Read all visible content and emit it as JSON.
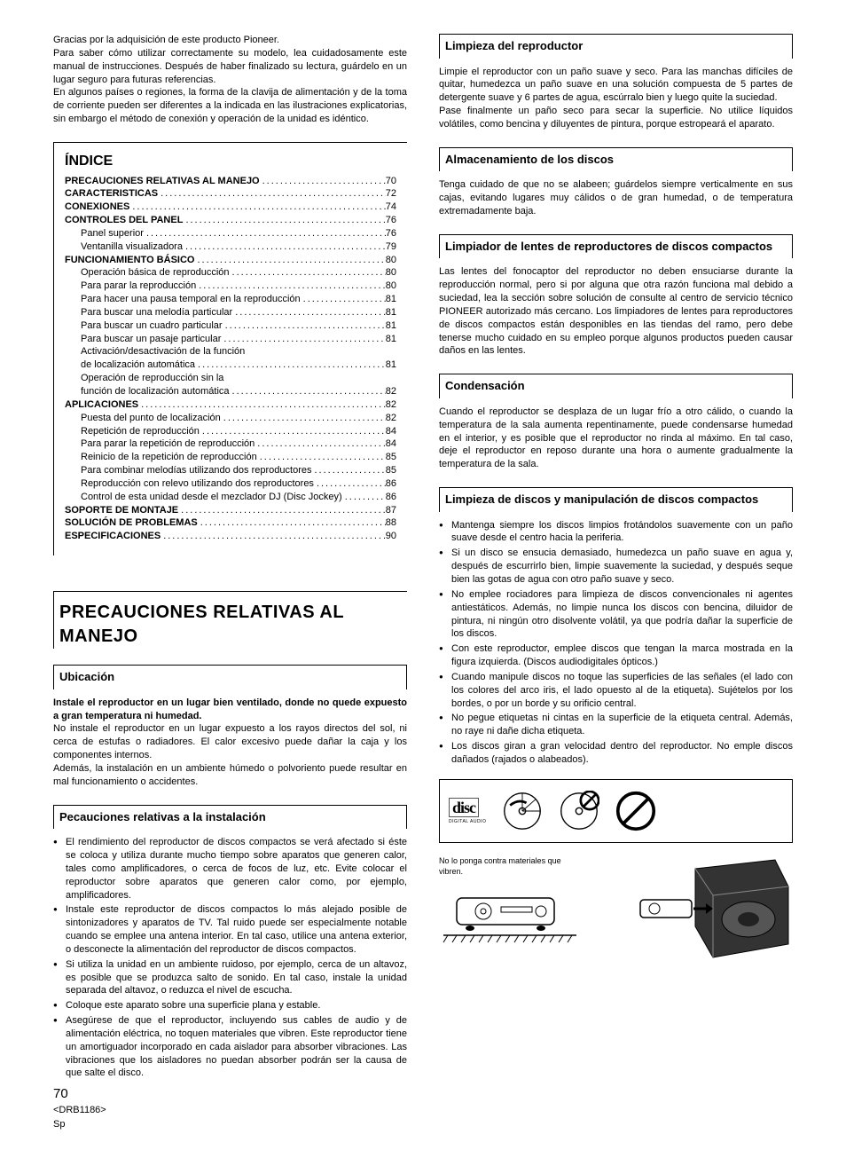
{
  "intro": {
    "p1": "Gracias por la adquisición de este producto Pioneer.",
    "p2": "Para saber cómo utilizar correctamente su modelo, lea cuidadosamente este manual de instrucciones. Después de haber finalizado su lectura, guárdelo en un lugar seguro para futuras referencias.",
    "p3": "En algunos países o regiones, la forma de la clavija de alimentación y de la toma de corriente pueden ser diferentes a la indicada en las ilustraciones explicatorias, sin embargo el método de conexión y operación de la unidad es idéntico."
  },
  "indice": {
    "title": "ÍNDICE",
    "rows": [
      {
        "label": "PRECAUCIONES RELATIVAS AL MANEJO",
        "page": "70",
        "bold": true
      },
      {
        "label": "CARACTERISTICAS",
        "page": "72",
        "bold": true
      },
      {
        "label": "CONEXIONES",
        "page": "74",
        "bold": true
      },
      {
        "label": "CONTROLES DEL PANEL",
        "page": "76",
        "bold": true
      },
      {
        "label": "Panel superior",
        "page": "76",
        "sub": true
      },
      {
        "label": "Ventanilla visualizadora",
        "page": "79",
        "sub": true
      },
      {
        "label": "FUNCIONAMIENTO BÁSICO",
        "page": "80",
        "bold": true
      },
      {
        "label": "Operación básica de reproducción",
        "page": "80",
        "sub": true
      },
      {
        "label": "Para parar la reproducción",
        "page": "80",
        "sub": true
      },
      {
        "label": "Para hacer una pausa temporal en la reproducción",
        "page": "81",
        "sub": true
      },
      {
        "label": "Para buscar una melodía particular",
        "page": "81",
        "sub": true
      },
      {
        "label": "Para buscar un cuadro particular",
        "page": "81",
        "sub": true
      },
      {
        "label": "Para buscar un pasaje particular",
        "page": "81",
        "sub": true
      },
      {
        "label": "Activación/desactivación de la función",
        "page": "",
        "sub": true,
        "nopage": true
      },
      {
        "label": "de localización automática",
        "page": "81",
        "sub": true
      },
      {
        "label": "Operación de reproducción sin la",
        "page": "",
        "sub": true,
        "nopage": true
      },
      {
        "label": "función de localización automática",
        "page": "82",
        "sub": true
      },
      {
        "label": "APLICACIONES",
        "page": "82",
        "bold": true
      },
      {
        "label": "Puesta del punto de localización",
        "page": "82",
        "sub": true
      },
      {
        "label": "Repetición de reproducción",
        "page": "84",
        "sub": true
      },
      {
        "label": "Para parar la repetición de reproducción",
        "page": "84",
        "sub": true
      },
      {
        "label": "Reinicio de la repetición de reproducción",
        "page": "85",
        "sub": true
      },
      {
        "label": "Para combinar melodías utilizando dos reproductores",
        "page": "85",
        "sub": true
      },
      {
        "label": "Reproducción con relevo utilizando dos reproductores",
        "page": "86",
        "sub": true
      },
      {
        "label": "Control de esta unidad desde el mezclador DJ (Disc Jockey)",
        "page": "86",
        "sub": true
      },
      {
        "label": "SOPORTE DE MONTAJE",
        "page": "87",
        "bold": true
      },
      {
        "label": "SOLUCIÓN DE PROBLEMAS",
        "page": "88",
        "bold": true
      },
      {
        "label": "ESPECIFICACIONES",
        "page": "90",
        "bold": true
      }
    ]
  },
  "h1": "PRECAUCIONES RELATIVAS AL MANEJO",
  "ubicacion": {
    "head": "Ubicación",
    "lead": "Instale el reproductor en un lugar bien ventilado, donde no quede expuesto a gran temperatura ni humedad.",
    "p1": "No instale el reproductor en un lugar expuesto a los rayos directos del sol, ni cerca de estufas o radiadores. El calor excesivo puede dañar la caja y los componentes internos.",
    "p2": "Además, la instalación en un ambiente húmedo o polvoriento puede resultar en mal funcionamiento o accidentes."
  },
  "instalacion": {
    "head": "Pecauciones relativas a la instalación",
    "items": [
      "El rendimiento del reproductor de discos compactos se verá afectado si éste se coloca y utiliza durante mucho tiempo sobre aparatos que generen calor, tales como amplificadores, o cerca de focos de luz, etc. Evite colocar el reproductor sobre aparatos que generen calor como, por ejemplo, amplificadores.",
      "Instale este reproductor de discos compactos lo más alejado posible de sintonizadores y aparatos de TV. Tal ruido puede ser especialmente notable cuando se emplee una antena interior. En tal caso, utilice una antena exterior, o desconecte la alimentación del reproductor de discos compactos.",
      "Si utiliza la unidad en un ambiente ruidoso, por ejemplo, cerca de un altavoz, es posible que se produzca salto de sonido. En tal caso, instale la unidad separada del altavoz, o reduzca el nivel de escucha.",
      "Coloque este aparato sobre una superficie plana y estable.",
      "Asegúrese de que el reproductor, incluyendo sus cables de audio y de alimentación eléctrica, no toquen materiales que vibren. Este reproductor tiene un amortiguador incorporado en cada aislador para absorber vibraciones. Las vibraciones que los aisladores no puedan absorber podrán ser la causa de que salte el disco."
    ]
  },
  "footer": {
    "page": "70",
    "ref": "<DRB1186>",
    "lang": "Sp"
  },
  "limpieza": {
    "head": "Limpieza del reproductor",
    "p1": "Limpie el reproductor con un paño suave y seco. Para las manchas difíciles de quitar, humedezca un paño suave en una solución compuesta de 5 partes de detergente suave y 6 partes de agua, escúrralo bien y luego quite la suciedad.",
    "p2": "Pase finalmente un paño seco para secar la superficie. No utilice líquidos volátiles, como bencina y diluyentes de pintura, porque estropeará el aparato."
  },
  "almacen": {
    "head": "Almacenamiento de los discos",
    "p": "Tenga cuidado de que no se alabeen; guárdelos siempre verticalmente en sus cajas, evitando lugares muy cálidos o de gran humedad, o de temperatura extremadamente baja."
  },
  "lentes": {
    "head": "Limpiador de lentes de reproductores de discos compactos",
    "p": "Las lentes del fonocaptor del reproductor no deben ensuciarse durante la reproducción normal, pero si por alguna que otra razón funciona mal debido a suciedad, lea la sección sobre solución de consulte al centro de servicio técnico PIONEER autorizado más cercano. Los limpiadores de lentes para reproductores de discos compactos están desponibles en las tiendas del ramo, pero debe tenerse mucho cuidado en su empleo porque algunos productos pueden causar daños en las lentes."
  },
  "condensacion": {
    "head": "Condensación",
    "p": "Cuando el reproductor se desplaza de un lugar frío a otro cálido, o cuando la temperatura de la sala aumenta repentinamente, puede condensarse humedad en el interior, y es posible que el reproductor no rinda al máximo. En tal caso, deje el reproductor en reposo durante una hora o aumente gradualmente la temperatura de la sala."
  },
  "manip": {
    "head": "Limpieza de discos y manipulación de discos compactos",
    "items": [
      "Mantenga siempre los discos limpios frotándolos suavemente con un paño suave desde el centro hacia la periferia.",
      "Si un disco se ensucia demasiado, humedezca un paño suave en agua y, después de escurrirlo bien, limpie suavemente la suciedad, y después seque bien las gotas de agua con otro paño suave y seco.",
      "No emplee rociadores para limpieza de discos convencionales ni agentes antiestáticos. Además, no limpie nunca los discos con bencina, diluidor de pintura, ni ningún otro disolvente volátil, ya que podría dañar la superficie de los discos.",
      "Con este reproductor, emplee discos que tengan la marca mostrada en la figura izquierda. (Discos audiodigitales ópticos.)",
      "Cuando manipule discos no toque las superficies de las señales (el lado con los colores del arco iris, el lado opuesto al de la etiqueta). Sujételos por los bordes, o por un borde y su orificio central.",
      "No pegue etiquetas ni cintas en la superficie de la etiqueta central. Además, no raye ni dañe dicha etiqueta.",
      "Los discos giran a gran velocidad dentro del reproductor. No emple discos dañados (rajados o alabeados)."
    ]
  },
  "illus2_caption": "No lo ponga contra materiales que vibren."
}
